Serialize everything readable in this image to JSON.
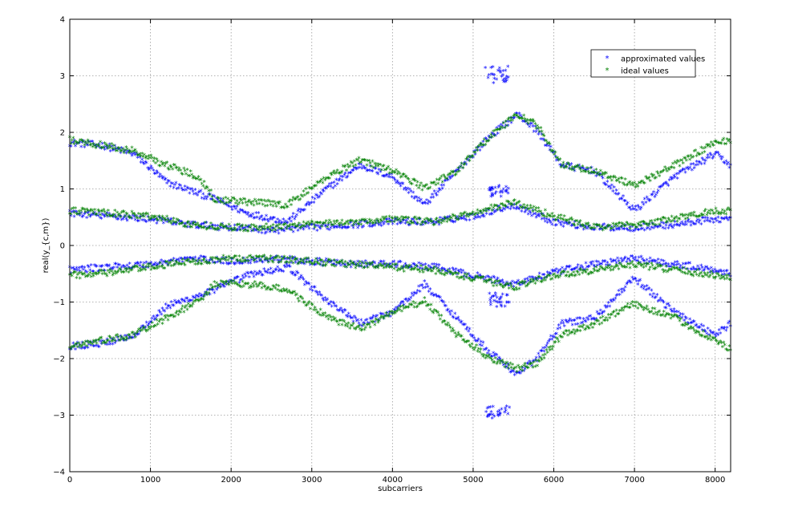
{
  "chart_data": {
    "type": "scatter",
    "title": "",
    "xlabel": "subcarriers",
    "ylabel": "real(y_{c,m})",
    "xlim": [
      0,
      8192
    ],
    "ylim": [
      -4,
      4
    ],
    "x_ticks": [
      0,
      1000,
      2000,
      3000,
      4000,
      5000,
      6000,
      7000,
      8000
    ],
    "y_ticks": [
      -4,
      -3,
      -2,
      -1,
      0,
      1,
      2,
      3,
      4
    ],
    "grid": true,
    "legend_position": "top-right",
    "marker": "*",
    "series": [
      {
        "name": "approximated values",
        "color": "#0000ff",
        "bands": [
          {
            "x": [
              0,
              400,
              800,
              1200,
              1600,
              1800,
              2200,
              2700,
              3200,
              3600,
              4000,
              4400,
              4800,
              5200,
              5550,
              5800,
              6100,
              6500,
              7000,
              7500,
              8000,
              8192
            ],
            "y": [
              1.8,
              1.75,
              1.6,
              1.1,
              0.9,
              0.8,
              0.55,
              0.4,
              1.0,
              1.4,
              1.2,
              0.7,
              1.3,
              1.9,
              2.3,
              2.0,
              1.4,
              1.3,
              0.6,
              1.2,
              1.6,
              1.4
            ]
          },
          {
            "x": [
              0,
              500,
              1000,
              1500,
              2000,
              2500,
              3000,
              3500,
              4000,
              4500,
              5000,
              5500,
              6000,
              6500,
              7000,
              7500,
              8000,
              8192
            ],
            "y": [
              0.55,
              0.5,
              0.45,
              0.35,
              0.3,
              0.25,
              0.3,
              0.35,
              0.4,
              0.4,
              0.5,
              0.7,
              0.4,
              0.3,
              0.3,
              0.35,
              0.45,
              0.45
            ]
          },
          {
            "x": [
              0,
              500,
              1000,
              1500,
              2000,
              2500,
              3000,
              3500,
              4000,
              4500,
              5000,
              5500,
              6000,
              6500,
              7000,
              7500,
              8000,
              8192
            ],
            "y": [
              -0.45,
              -0.4,
              -0.35,
              -0.25,
              -0.3,
              -0.25,
              -0.3,
              -0.35,
              -0.35,
              -0.4,
              -0.55,
              -0.7,
              -0.5,
              -0.35,
              -0.25,
              -0.35,
              -0.45,
              -0.5
            ]
          },
          {
            "x": [
              0,
              400,
              800,
              1200,
              1600,
              1800,
              2200,
              2700,
              3200,
              3600,
              4000,
              4400,
              4800,
              5200,
              5550,
              5800,
              6100,
              6500,
              7000,
              7500,
              8000,
              8192
            ],
            "y": [
              -1.8,
              -1.75,
              -1.6,
              -1.1,
              -0.9,
              -0.8,
              -0.55,
              -0.4,
              -1.0,
              -1.4,
              -1.2,
              -0.7,
              -1.3,
              -1.9,
              -2.3,
              -2.0,
              -1.4,
              -1.3,
              -0.6,
              -1.2,
              -1.6,
              -1.4
            ]
          }
        ],
        "clusters": [
          {
            "x": [
              5150,
              5450
            ],
            "y": [
              2.85,
              3.15
            ]
          },
          {
            "x": [
              5150,
              5450
            ],
            "y": [
              -3.1,
              -2.85
            ]
          },
          {
            "x": [
              5200,
              5450
            ],
            "y": [
              0.85,
              1.05
            ]
          },
          {
            "x": [
              5200,
              5450
            ],
            "y": [
              -1.1,
              -0.85
            ]
          }
        ]
      },
      {
        "name": "ideal values",
        "color": "#008000",
        "bands": [
          {
            "x": [
              0,
              400,
              800,
              1200,
              1600,
              1800,
              2200,
              2700,
              3200,
              3600,
              4000,
              4400,
              4800,
              5200,
              5550,
              5800,
              6100,
              6500,
              7000,
              7500,
              8000,
              8192
            ],
            "y": [
              1.85,
              1.75,
              1.65,
              1.4,
              1.2,
              0.8,
              0.75,
              0.7,
              1.2,
              1.5,
              1.3,
              1.0,
              1.3,
              1.9,
              2.3,
              2.1,
              1.4,
              1.3,
              1.05,
              1.4,
              1.8,
              1.85
            ]
          },
          {
            "x": [
              0,
              500,
              1000,
              1500,
              2000,
              2500,
              3000,
              3500,
              4000,
              4500,
              5000,
              5500,
              6000,
              6500,
              7000,
              7500,
              8000,
              8192
            ],
            "y": [
              0.6,
              0.55,
              0.5,
              0.35,
              0.3,
              0.3,
              0.35,
              0.4,
              0.45,
              0.4,
              0.55,
              0.75,
              0.5,
              0.3,
              0.35,
              0.45,
              0.6,
              0.6
            ]
          },
          {
            "x": [
              0,
              500,
              1000,
              1500,
              2000,
              2500,
              3000,
              3500,
              4000,
              4500,
              5000,
              5500,
              6000,
              6500,
              7000,
              7500,
              8000,
              8192
            ],
            "y": [
              -0.55,
              -0.5,
              -0.4,
              -0.3,
              -0.25,
              -0.25,
              -0.3,
              -0.35,
              -0.4,
              -0.45,
              -0.6,
              -0.75,
              -0.55,
              -0.45,
              -0.35,
              -0.45,
              -0.55,
              -0.6
            ]
          },
          {
            "x": [
              0,
              400,
              800,
              1200,
              1600,
              1800,
              2200,
              2700,
              3200,
              3600,
              4000,
              4400,
              4800,
              5200,
              5550,
              5800,
              6100,
              6500,
              7000,
              7500,
              8000,
              8192
            ],
            "y": [
              -1.8,
              -1.7,
              -1.6,
              -1.3,
              -1.0,
              -0.7,
              -0.7,
              -0.8,
              -1.3,
              -1.5,
              -1.2,
              -1.0,
              -1.6,
              -2.0,
              -2.2,
              -2.1,
              -1.6,
              -1.4,
              -1.05,
              -1.3,
              -1.7,
              -1.85
            ]
          }
        ],
        "clusters": []
      }
    ]
  }
}
